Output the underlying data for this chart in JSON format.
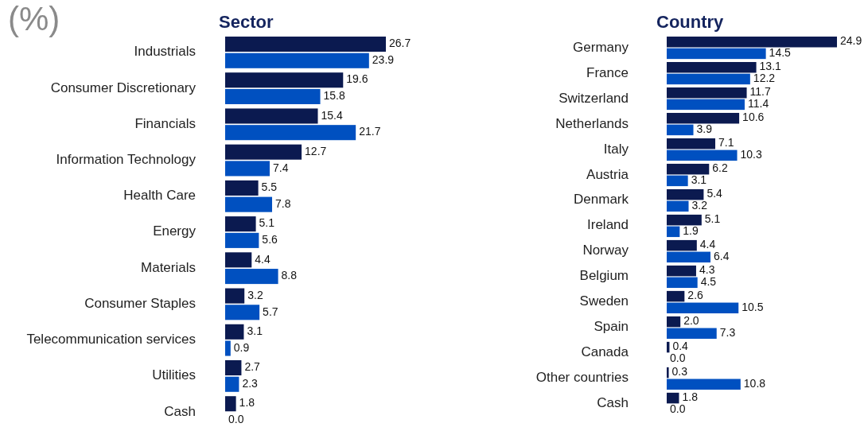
{
  "chart_data": [
    {
      "type": "bar",
      "orientation": "horizontal",
      "title": "Sector",
      "annotations": [
        "(%)"
      ],
      "categories": [
        "Industrials",
        "Consumer Discretionary",
        "Financials",
        "Information Technology",
        "Health Care",
        "Energy",
        "Materials",
        "Consumer Staples",
        "Telecommunication services",
        "Utilities",
        "Cash"
      ],
      "series": [
        {
          "color": "#0b1a50",
          "values": [
            26.7,
            19.6,
            15.4,
            12.7,
            5.5,
            5.1,
            4.4,
            3.2,
            3.1,
            2.7,
            1.8
          ],
          "value_labels": [
            "26.7",
            "19.6",
            "15.4",
            "12.7",
            "5.5",
            "5.1",
            "4.4",
            "3.2",
            "3.1",
            "2.7",
            "1.8"
          ]
        },
        {
          "color": "#0050c0",
          "values": [
            23.9,
            15.8,
            21.7,
            7.4,
            7.8,
            5.6,
            8.8,
            5.7,
            0.9,
            2.3,
            0
          ],
          "value_labels": [
            "23.9",
            "15.8",
            "21.7",
            "7.4",
            "7.8",
            "5.6",
            "8.8",
            "5.7",
            "0.9",
            "2.3",
            "0.0"
          ]
        }
      ]
    },
    {
      "type": "bar",
      "orientation": "horizontal",
      "title": "Country",
      "categories": [
        "Germany",
        "France",
        "Switzerland",
        "Netherlands",
        "Italy",
        "Austria",
        "Denmark",
        "Ireland",
        "Norway",
        "Belgium",
        "Sweden",
        "Spain",
        "Canada",
        "Other countries",
        "Cash"
      ],
      "series": [
        {
          "color": "#0b1a50",
          "values": [
            24.9,
            13.1,
            11.7,
            10.6,
            7.1,
            6.2,
            5.4,
            5.1,
            4.4,
            4.3,
            2.6,
            2,
            0.4,
            0.3,
            1.8
          ],
          "value_labels": [
            "24.9",
            "13.1",
            "11.7",
            "10.6",
            "7.1",
            "6.2",
            "5.4",
            "5.1",
            "4.4",
            "4.3",
            "2.6",
            "2.0",
            "0.4",
            "0.3",
            "1.8"
          ]
        },
        {
          "color": "#0050c0",
          "values": [
            14.5,
            12.2,
            11.4,
            3.9,
            10.3,
            3.1,
            3.2,
            1.9,
            6.4,
            4.5,
            10.5,
            7.3,
            0,
            10.8,
            0
          ],
          "value_labels": [
            "14.5",
            "12.2",
            "11.4",
            "3.9",
            "10.3",
            "3.1",
            "3.2",
            "1.9",
            "6.4",
            "4.5",
            "10.5",
            "7.3",
            "0.0",
            "10.8",
            "0.0"
          ]
        }
      ]
    }
  ]
}
